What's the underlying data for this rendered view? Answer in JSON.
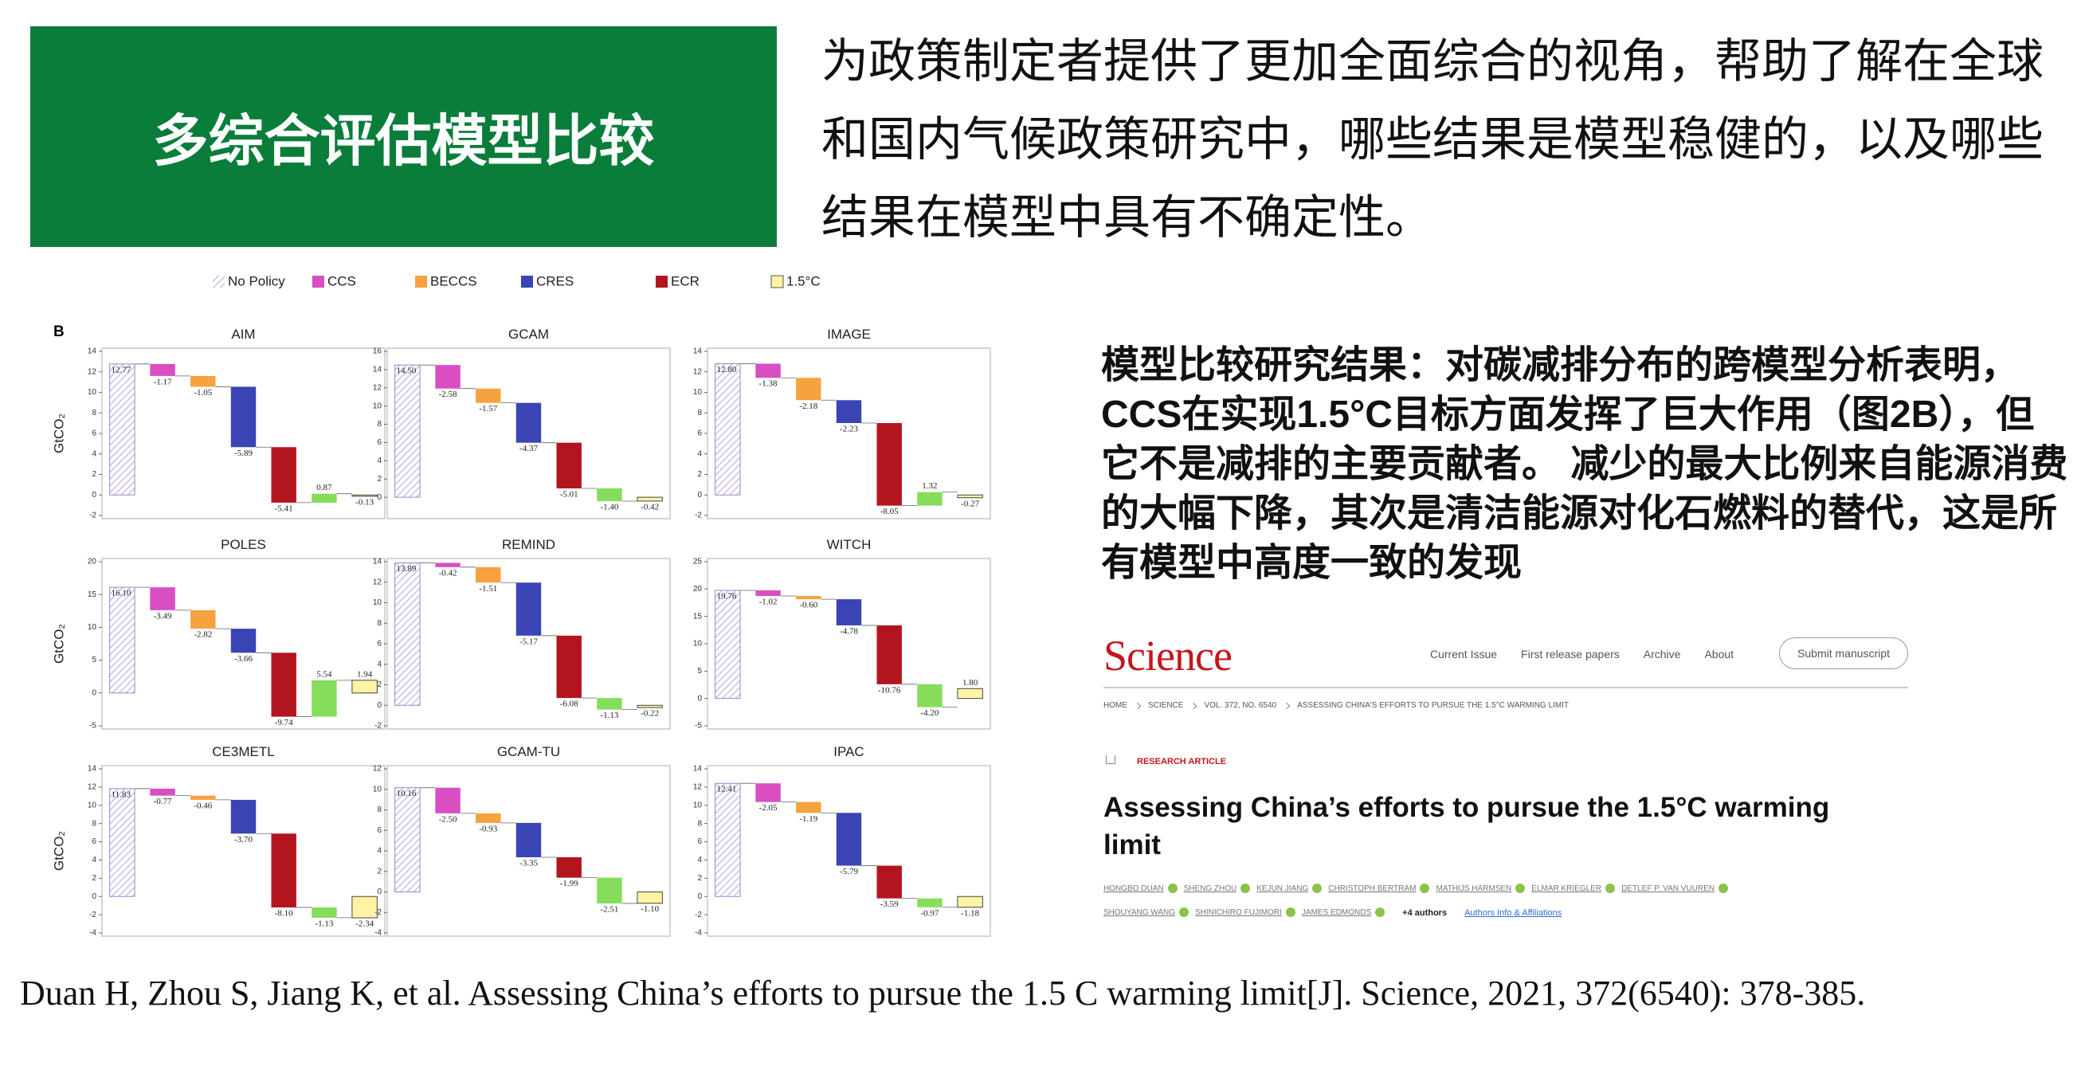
{
  "header": {
    "title": "多综合评估模型比较"
  },
  "intro": "为政策制定者提供了更加全面综合的视角，帮助了解在全球和国内气候政策研究中，哪些结果是模型稳健的，以及哪些结果在模型中具有不确定性。",
  "figure": {
    "panel_label": "B",
    "legend": [
      {
        "name": "No Policy",
        "color": "#cdbcec"
      },
      {
        "name": "CCS",
        "color": "#d94fc2"
      },
      {
        "name": "BECCS",
        "color": "#f6a23f"
      },
      {
        "name": "CRES",
        "color": "#3a44b5"
      },
      {
        "name": "ECR",
        "color": "#b3151f"
      },
      {
        "name": "1.5°C",
        "color": "#fff4a3"
      }
    ],
    "step_colors": [
      "#cdbcec",
      "#d94fc2",
      "#f6a23f",
      "#3a44b5",
      "#b3151f",
      "#86dd5c",
      "#fff4a3"
    ]
  },
  "chart_data": [
    {
      "type": "waterfall",
      "title": "AIM",
      "ylabel": "GtCO₂",
      "values": [
        12.77,
        -1.17,
        -1.05,
        -5.89,
        -5.41,
        0.87,
        -0.13
      ],
      "value_labels": [
        "12.77",
        "-1.17",
        "-1.05",
        "-5.89",
        "-5.41",
        "0.87",
        "-0.13"
      ],
      "ylim": [
        -2,
        14
      ],
      "yticks": [
        -2,
        0,
        2,
        4,
        6,
        8,
        10,
        12,
        14
      ]
    },
    {
      "type": "waterfall",
      "title": "GCAM",
      "values": [
        14.5,
        -2.58,
        -1.57,
        -4.37,
        -5.01,
        -1.4,
        -0.42
      ],
      "value_labels": [
        "14.50",
        "-2.58",
        "-1.57",
        "-4.37",
        "-5.01",
        "-1.40",
        "-0.42"
      ],
      "ylim": [
        -2,
        16
      ],
      "yticks": [
        0,
        2,
        4,
        6,
        8,
        10,
        12,
        14,
        16
      ]
    },
    {
      "type": "waterfall",
      "title": "IMAGE",
      "values": [
        12.8,
        -1.38,
        -2.18,
        -2.23,
        -8.05,
        1.32,
        -0.27
      ],
      "value_labels": [
        "12.80",
        "-1.38",
        "-2.18",
        "-2.23",
        "-8.05",
        "1.32",
        "-0.27"
      ],
      "ylim": [
        -2,
        14
      ],
      "yticks": [
        -2,
        0,
        2,
        4,
        6,
        8,
        10,
        12,
        14
      ]
    },
    {
      "type": "waterfall",
      "title": "POLES",
      "ylabel": "GtCO₂",
      "values": [
        16.1,
        -3.49,
        -2.82,
        -3.66,
        -9.74,
        5.54,
        1.94
      ],
      "value_labels": [
        "16.10",
        "-3.49",
        "-2.82",
        "-3.66",
        "-9.74",
        "5.54",
        "1.94"
      ],
      "ylim": [
        -5,
        20
      ],
      "yticks": [
        -5,
        0,
        5,
        10,
        15,
        20
      ]
    },
    {
      "type": "waterfall",
      "title": "REMIND",
      "values": [
        13.89,
        -0.42,
        -1.51,
        -5.17,
        -6.08,
        -1.13,
        -0.22
      ],
      "value_labels": [
        "13.89",
        "-0.42",
        "-1.51",
        "-5.17",
        "-6.08",
        "-1.13",
        "-0.22"
      ],
      "ylim": [
        -2,
        14
      ],
      "yticks": [
        -2,
        0,
        2,
        4,
        6,
        8,
        10,
        12,
        14
      ]
    },
    {
      "type": "waterfall",
      "title": "WITCH",
      "values": [
        19.76,
        -1.02,
        -0.6,
        -4.78,
        -10.76,
        -4.2,
        1.8
      ],
      "value_labels": [
        "19.76",
        "-1.02",
        "-0.60",
        "-4.78",
        "-10.76",
        "-4.20",
        "1.80"
      ],
      "ylim": [
        -5,
        25
      ],
      "yticks": [
        -5,
        0,
        5,
        10,
        15,
        20,
        25
      ]
    },
    {
      "type": "waterfall",
      "title": "CE3METL",
      "ylabel": "GtCO₂",
      "values": [
        11.83,
        -0.77,
        -0.46,
        -3.7,
        -8.1,
        -1.13,
        -2.34
      ],
      "value_labels": [
        "11.83",
        "-0.77",
        "-0.46",
        "-3.70",
        "-8.10",
        "-1.13",
        "-2.34"
      ],
      "ylim": [
        -4,
        14
      ],
      "yticks": [
        -4,
        -2,
        0,
        2,
        4,
        6,
        8,
        10,
        12,
        14
      ]
    },
    {
      "type": "waterfall",
      "title": "GCAM-TU",
      "values": [
        10.16,
        -2.5,
        -0.93,
        -3.35,
        -1.99,
        -2.51,
        -1.1
      ],
      "value_labels": [
        "10.16",
        "-2.50",
        "-0.93",
        "-3.35",
        "-1.99",
        "-2.51",
        "-1.10"
      ],
      "ylim": [
        -4,
        12
      ],
      "yticks": [
        -4,
        -2,
        0,
        2,
        4,
        6,
        8,
        10,
        12
      ]
    },
    {
      "type": "waterfall",
      "title": "IPAC",
      "values": [
        12.41,
        -2.05,
        -1.19,
        -5.79,
        -3.59,
        -0.97,
        -1.18
      ],
      "value_labels": [
        "12.41",
        "-2.05",
        "-1.19",
        "-5.79",
        "-3.59",
        "-0.97",
        "-1.18"
      ],
      "ylim": [
        -4,
        14
      ],
      "yticks": [
        -4,
        -2,
        0,
        2,
        4,
        6,
        8,
        10,
        12,
        14
      ]
    }
  ],
  "finding": "模型比较研究结果：对碳减排分布的跨模型分析表明，CCS在实现1.5°C目标方面发挥了巨大作用（图2B），但它不是减排的主要贡献者。 减少的最大比例来自能源消费的大幅下降，其次是清洁能源对化石燃料的替代，这是所有模型中高度一致的发现",
  "science": {
    "logo": "Science",
    "nav": [
      "Current Issue",
      "First release papers",
      "Archive",
      "About"
    ],
    "button": "Submit manuscript",
    "breadcrumb": [
      "HOME",
      "SCIENCE",
      "VOL. 372, NO. 6540",
      "ASSESSING CHINA'S EFFORTS TO PURSUE THE 1.5°C WARMING LIMIT"
    ],
    "article_type": "RESEARCH ARTICLE",
    "title": "Assessing China’s efforts to pursue the 1.5°C warming limit",
    "authors": [
      "HONGBO DUAN",
      "SHENG ZHOU",
      "KEJUN JIANG",
      "CHRISTOPH BERTRAM",
      "MATHIJS HARMSEN",
      "ELMAR KRIEGLER",
      "DETLEF P. VAN VUUREN",
      "SHOUYANG WANG",
      "SHINICHIRO FUJIMORI",
      "JAMES EDMONDS"
    ],
    "more_authors": "+4 authors",
    "affiliations": "Authors Info & Affiliations"
  },
  "citation": "Duan H, Zhou S, Jiang K, et al. Assessing China’s efforts to pursue the 1.5 C warming limit[J]. Science, 2021, 372(6540): 378-385."
}
